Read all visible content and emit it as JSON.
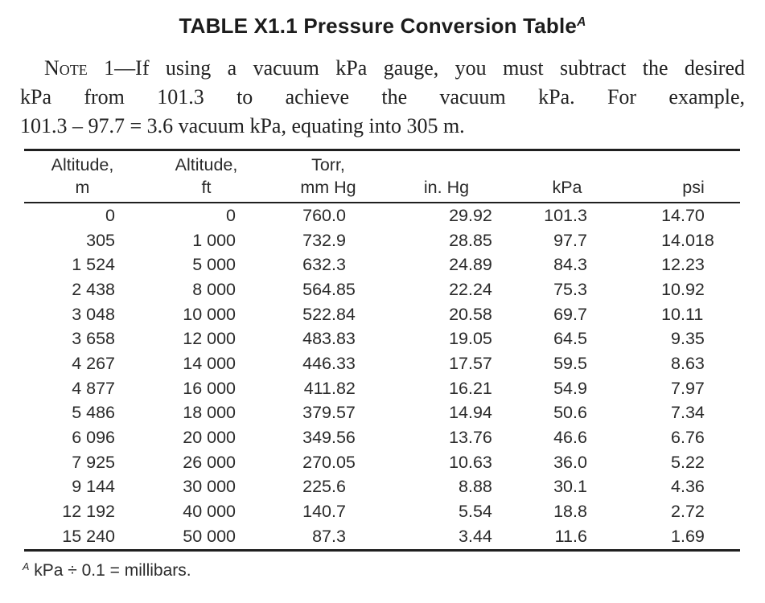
{
  "title": {
    "text": "TABLE X1.1 Pressure Conversion Table",
    "footnote_marker": "A"
  },
  "note": {
    "label": "Note 1",
    "lines": [
      "—If using a vacuum kPa gauge, you must subtract the desired",
      "kPa from 101.3 to achieve the vacuum kPa. For example,",
      "101.3 – 97.7 = 3.6 vacuum kPa, equating into 305 m."
    ]
  },
  "table": {
    "columns": [
      {
        "line1": "Altitude,",
        "line2": "m"
      },
      {
        "line1": "Altitude,",
        "line2": "ft"
      },
      {
        "line1": "Torr,",
        "line2": "mm Hg"
      },
      {
        "line1": "",
        "line2": "in. Hg"
      },
      {
        "line1": "",
        "line2": "kPa"
      },
      {
        "line1": "",
        "line2": "psi"
      }
    ],
    "rows": [
      [
        "0",
        "0",
        "760.0",
        "29.92",
        "101.3",
        "14.70"
      ],
      [
        "305",
        "1 000",
        "732.9",
        "28.85",
        "97.7",
        "14.018"
      ],
      [
        "1 524",
        "5 000",
        "632.3",
        "24.89",
        "84.3",
        "12.23"
      ],
      [
        "2 438",
        "8 000",
        "564.85",
        "22.24",
        "75.3",
        "10.92"
      ],
      [
        "3 048",
        "10 000",
        "522.84",
        "20.58",
        "69.7",
        "10.11"
      ],
      [
        "3 658",
        "12 000",
        "483.83",
        "19.05",
        "64.5",
        "9.35"
      ],
      [
        "4 267",
        "14 000",
        "446.33",
        "17.57",
        "59.5",
        "8.63"
      ],
      [
        "4 877",
        "16 000",
        "411.82",
        "16.21",
        "54.9",
        "7.97"
      ],
      [
        "5 486",
        "18 000",
        "379.57",
        "14.94",
        "50.6",
        "7.34"
      ],
      [
        "6 096",
        "20 000",
        "349.56",
        "13.76",
        "46.6",
        "6.76"
      ],
      [
        "7 925",
        "26 000",
        "270.05",
        "10.63",
        "36.0",
        "5.22"
      ],
      [
        "9 144",
        "30 000",
        "225.6",
        "8.88",
        "30.1",
        "4.36"
      ],
      [
        "12 192",
        "40 000",
        "140.7",
        "5.54",
        "18.8",
        "2.72"
      ],
      [
        "15 240",
        "50 000",
        "87.3",
        "3.44",
        "11.6",
        "1.69"
      ]
    ]
  },
  "footnote": {
    "marker": "A",
    "text": " kPa ÷ 0.1 = millibars."
  }
}
